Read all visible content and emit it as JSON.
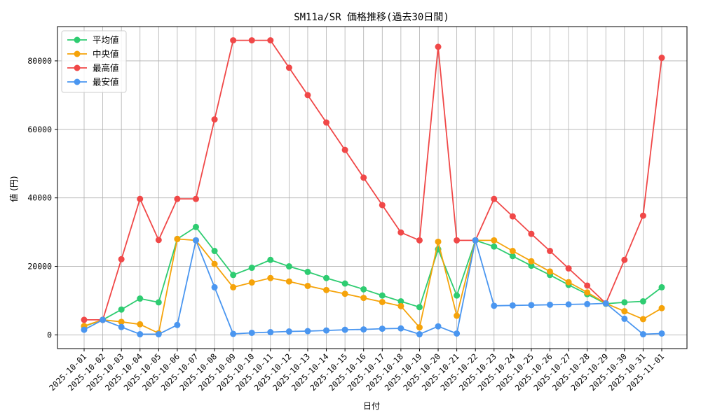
{
  "chart_data": {
    "type": "line",
    "title": "SM11a/SR 価格推移(過去30日間)",
    "xlabel": "日付",
    "ylabel": "値 (円)",
    "ylim": [
      -4000,
      90000
    ],
    "yticks": [
      0,
      20000,
      40000,
      60000,
      80000
    ],
    "grid": true,
    "legend_position": "top-left",
    "categories": [
      "2025-10-01",
      "2025-10-02",
      "2025-10-03",
      "2025-10-04",
      "2025-10-05",
      "2025-10-06",
      "2025-10-07",
      "2025-10-08",
      "2025-10-09",
      "2025-10-10",
      "2025-10-11",
      "2025-10-12",
      "2025-10-13",
      "2025-10-14",
      "2025-10-15",
      "2025-10-16",
      "2025-10-17",
      "2025-10-18",
      "2025-10-19",
      "2025-10-20",
      "2025-10-21",
      "2025-10-22",
      "2025-10-23",
      "2025-10-24",
      "2025-10-25",
      "2025-10-26",
      "2025-10-27",
      "2025-10-28",
      "2025-10-29",
      "2025-10-30",
      "2025-10-31",
      "2025-11-01"
    ],
    "series": [
      {
        "name": "平均値",
        "color": "#2ecc71",
        "values": [
          2500,
          4400,
          7400,
          10600,
          9500,
          28000,
          31500,
          24500,
          17500,
          19600,
          21900,
          20000,
          18400,
          16600,
          15000,
          13300,
          11500,
          9800,
          8100,
          25000,
          11500,
          27600,
          25800,
          23000,
          20200,
          17500,
          14600,
          11900,
          9100,
          9500,
          9800,
          13900
        ]
      },
      {
        "name": "中央値",
        "color": "#f5a30a",
        "values": [
          2600,
          4400,
          3800,
          3100,
          500,
          28000,
          27600,
          20700,
          13900,
          15300,
          16600,
          15600,
          14300,
          13100,
          12000,
          10800,
          9600,
          8400,
          2200,
          27200,
          5600,
          27600,
          27600,
          24500,
          21500,
          18500,
          15400,
          12400,
          9200,
          6900,
          4600,
          7800
        ]
      },
      {
        "name": "最高値",
        "color": "#f04848",
        "values": [
          4400,
          4400,
          22100,
          39700,
          27700,
          39700,
          39700,
          62900,
          86000,
          86000,
          86000,
          78000,
          70000,
          62000,
          54000,
          45900,
          37900,
          29900,
          27600,
          84100,
          27600,
          27600,
          39700,
          34600,
          29500,
          24500,
          19400,
          14400,
          9200,
          21900,
          34800,
          80900
        ]
      },
      {
        "name": "最安値",
        "color": "#4a96f0",
        "values": [
          1500,
          4400,
          2300,
          200,
          200,
          2900,
          27600,
          13900,
          300,
          600,
          800,
          1000,
          1100,
          1300,
          1500,
          1600,
          1800,
          1900,
          200,
          2500,
          400,
          27600,
          8500,
          8600,
          8700,
          8800,
          8900,
          9000,
          9200,
          4700,
          200,
          400
        ]
      }
    ]
  }
}
